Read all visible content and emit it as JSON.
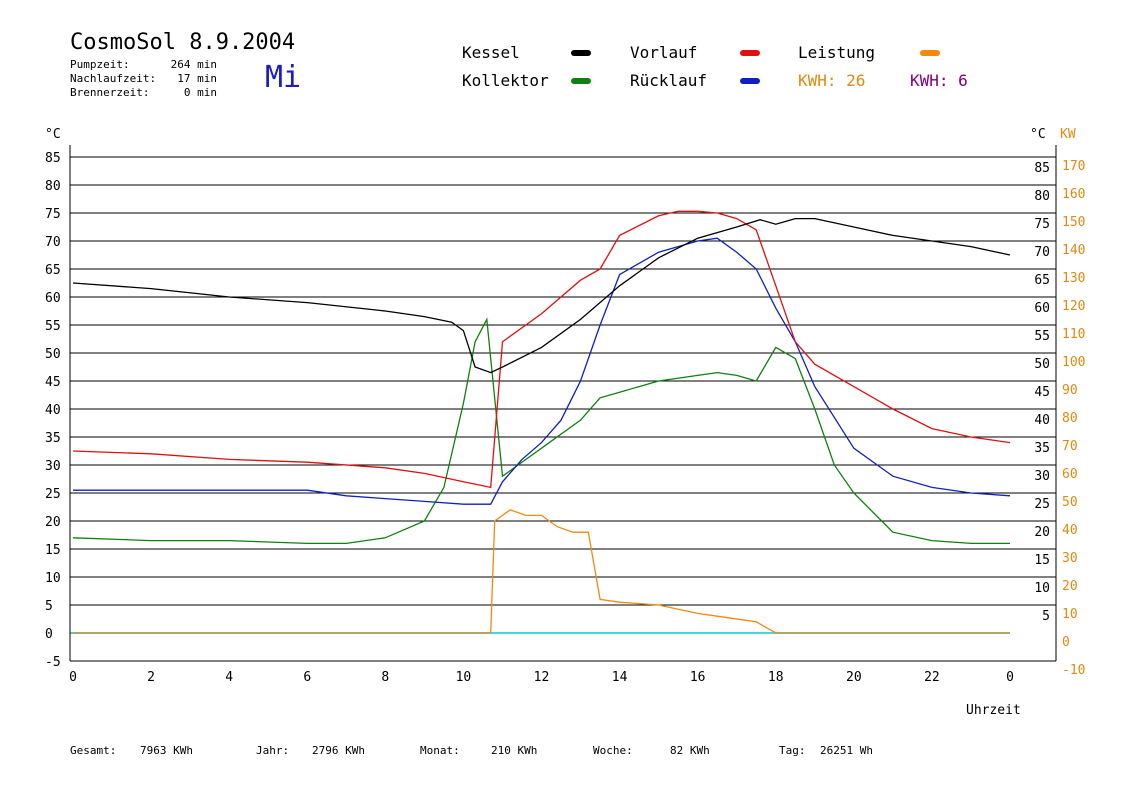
{
  "header": {
    "title": "CosmoSol 8.9.2004",
    "day": "Mi",
    "stats": [
      {
        "label": "Pumpzeit:",
        "value": "264 min"
      },
      {
        "label": "Nachlaufzeit:",
        "value": "17 min"
      },
      {
        "label": "Brennerzeit:",
        "value": "0 min"
      }
    ]
  },
  "legend": {
    "kessel": "Kessel",
    "vorlauf": "Vorlauf",
    "leistung": "Leistung",
    "kollektor": "Kollektor",
    "ruecklauf": "Rücklauf",
    "kwh_orange": "KWH: 26",
    "kwh_purple": "KWH: 6"
  },
  "footer": [
    {
      "label": "Gesamt:",
      "value": "7963 KWh"
    },
    {
      "label": "Jahr:",
      "value": "2796 KWh"
    },
    {
      "label": "Monat:",
      "value": "210 KWh"
    },
    {
      "label": "Woche:",
      "value": "82 KWh"
    },
    {
      "label": "Tag:",
      "value": "26251 Wh"
    }
  ],
  "colors": {
    "kessel": "#000000",
    "vorlauf": "#e01010",
    "ruecklauf": "#1020c0",
    "kollektor": "#108010",
    "leistung": "#f08a10",
    "kwh_purple": "#800080",
    "zero_line": "#40d8d8",
    "right_axis": "#e08a10"
  },
  "chart_data": {
    "type": "line",
    "title": "CosmoSol 8.9.2004",
    "xlabel": "Uhrzeit",
    "ylabel_left": "°C",
    "ylabel_right_inner": "°C",
    "ylabel_right_outer": "KW",
    "xlim": [
      0,
      24
    ],
    "ylim": [
      -5,
      90
    ],
    "x_ticks": [
      "0",
      "2",
      "4",
      "6",
      "8",
      "10",
      "12",
      "14",
      "16",
      "18",
      "20",
      "22",
      "0"
    ],
    "y_ticks_left": [
      "85",
      "80",
      "75",
      "70",
      "65",
      "60",
      "55",
      "50",
      "45",
      "40",
      "35",
      "30",
      "25",
      "20",
      "15",
      "10",
      "5",
      "0",
      "-5"
    ],
    "y_ticks_right_inner": [
      "85",
      "80",
      "75",
      "70",
      "65",
      "60",
      "55",
      "50",
      "45",
      "40",
      "35",
      "30",
      "25",
      "20",
      "15",
      "10",
      "5"
    ],
    "y_ticks_right_outer": [
      "170",
      "160",
      "150",
      "140",
      "130",
      "120",
      "110",
      "100",
      "90",
      "80",
      "70",
      "60",
      "50",
      "40",
      "30",
      "20",
      "10",
      "0",
      "-10"
    ],
    "grid": true,
    "series": [
      {
        "name": "Kessel",
        "x": [
          0,
          2,
          4,
          6,
          8,
          9,
          9.7,
          10,
          10.3,
          10.7,
          11,
          12,
          13,
          14,
          15,
          16,
          17,
          17.6,
          18,
          18.5,
          19,
          20,
          21,
          22,
          23,
          24
        ],
        "y": [
          62.5,
          61.5,
          60,
          59,
          57.5,
          56.5,
          55.5,
          54,
          47.5,
          46.5,
          47.5,
          51,
          56,
          62,
          67,
          70.5,
          72.5,
          73.8,
          73,
          74,
          74,
          72.5,
          71,
          70,
          69,
          67.5
        ]
      },
      {
        "name": "Vorlauf",
        "x": [
          0,
          2,
          4,
          6,
          8,
          9,
          10,
          10.7,
          11,
          12,
          13,
          13.5,
          14,
          15,
          15.5,
          16,
          16.5,
          17,
          17.5,
          18,
          18.5,
          19,
          20,
          21,
          22,
          23,
          24
        ],
        "y": [
          32.5,
          32,
          31,
          30.5,
          29.5,
          28.5,
          27,
          26,
          52,
          57,
          63,
          65,
          71,
          74.5,
          75.3,
          75.3,
          75,
          74,
          72,
          62,
          52,
          48,
          44,
          40,
          36.5,
          35,
          34
        ]
      },
      {
        "name": "Rücklauf",
        "x": [
          0,
          2,
          4,
          6,
          7,
          8,
          9,
          10,
          10.7,
          11,
          11.5,
          12,
          12.5,
          13,
          13.5,
          14,
          15,
          15.5,
          16,
          16.5,
          17,
          17.5,
          18,
          18.5,
          19,
          20,
          21,
          22,
          23,
          24
        ],
        "y": [
          25.5,
          25.5,
          25.5,
          25.5,
          24.5,
          24,
          23.5,
          23,
          23,
          27,
          31,
          34,
          38,
          45,
          55,
          64,
          68,
          69,
          70,
          70.5,
          68,
          65,
          58,
          52,
          44,
          33,
          28,
          26,
          25,
          24.5
        ]
      },
      {
        "name": "Kollektor",
        "x": [
          0,
          2,
          4,
          6,
          7,
          8,
          9,
          9.5,
          10,
          10.3,
          10.6,
          11,
          12,
          13,
          13.5,
          14,
          15,
          16,
          16.5,
          17,
          17.5,
          18,
          18.5,
          19,
          19.5,
          20,
          21,
          22,
          23,
          24
        ],
        "y": [
          17,
          16.5,
          16.5,
          16,
          16,
          17,
          20,
          26,
          41,
          52,
          56,
          28,
          33,
          38,
          42,
          43,
          45,
          46,
          46.5,
          46,
          45,
          51,
          49,
          40,
          30,
          25,
          18,
          16.5,
          16,
          16
        ]
      },
      {
        "name": "Leistung",
        "x": [
          0,
          10.7,
          10.8,
          11.2,
          11.6,
          12,
          12.4,
          12.8,
          13.2,
          13.5,
          14,
          15,
          16,
          16.5,
          17.5,
          18,
          24
        ],
        "y": [
          0,
          0,
          20,
          22,
          21,
          21,
          19,
          18,
          18,
          6,
          5.5,
          5,
          3.5,
          3,
          2,
          0,
          0
        ]
      }
    ]
  }
}
